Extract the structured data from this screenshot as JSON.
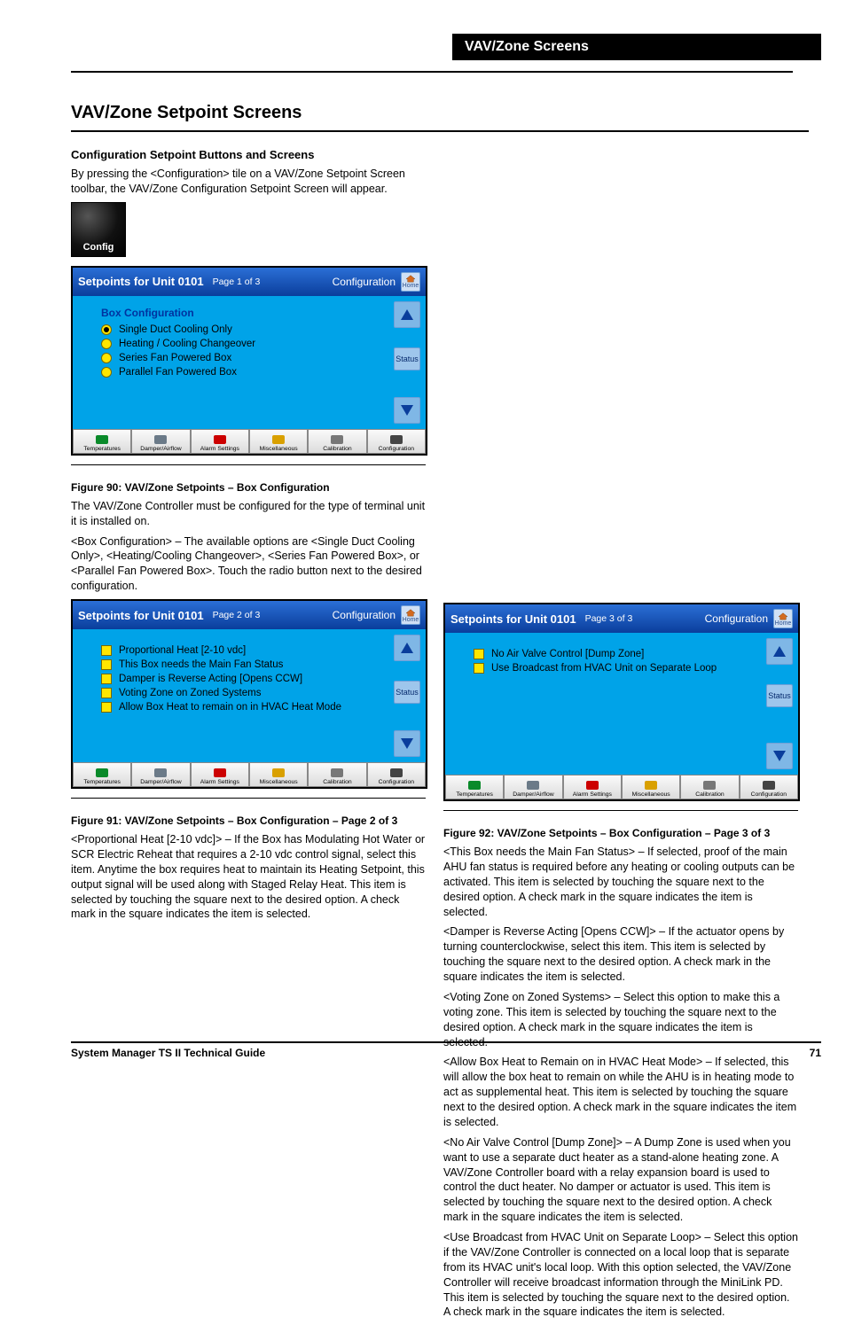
{
  "top_banner": "VAV/Zone Screens",
  "section_title": "VAV/Zone Setpoint Screens",
  "subhead_config": "Configuration Setpoint Buttons and Screens",
  "intro_text": "By pressing the <Configuration> tile on a VAV/Zone Setpoint Screen toolbar, the VAV/Zone Configuration Setpoint Screen will appear.",
  "config_btn_label": "Config",
  "panel1": {
    "header_title": "Setpoints for Unit 0101",
    "page_num": "Page 1 of 3",
    "header_right": "Configuration",
    "box_title": "Box Configuration",
    "options": [
      {
        "label": "Single Duct Cooling Only",
        "selected": true
      },
      {
        "label": "Heating / Cooling Changeover",
        "selected": false
      },
      {
        "label": "Series Fan Powered Box",
        "selected": false
      },
      {
        "label": "Parallel Fan Powered Box",
        "selected": false
      }
    ],
    "status_label": "Status"
  },
  "fig1_title": "Figure 90: VAV/Zone Setpoints – Box Configuration",
  "fig1_body1": "The VAV/Zone Controller must be configured for the type of terminal unit it is installed on.",
  "fig1_body2": "<Box Configuration> – The available options are <Single Duct Cooling Only>, <Heating/Cooling Changeover>, <Series Fan Powered Box>, or <Parallel Fan Powered Box>. Touch the radio button next to the desired configuration.",
  "panel2": {
    "header_title": "Setpoints for Unit 0101",
    "page_num": "Page 2 of 3",
    "header_right": "Configuration",
    "options": [
      "Proportional Heat [2-10 vdc]",
      "This Box needs the Main Fan Status",
      "Damper is Reverse Acting [Opens CCW]",
      "Voting Zone on Zoned Systems",
      "Allow Box Heat to remain on in HVAC Heat Mode"
    ],
    "status_label": "Status"
  },
  "fig2_title": "Figure 91: VAV/Zone Setpoints – Box Configuration – Page 2 of 3",
  "fig2_body": "<Proportional Heat [2-10 vdc]> – If the Box has Modulating Hot Water or SCR Electric Reheat that requires a 2-10 vdc control signal, select this item. Anytime the box requires heat to maintain its Heating Setpoint, this output signal will be used along with Staged Relay Heat. This item is selected by touching the square next to the desired option. A check mark in the square indicates the item is selected.",
  "panel3": {
    "header_title": "Setpoints for Unit 0101",
    "page_num": "Page 3 of 3",
    "header_right": "Configuration",
    "options": [
      "No Air Valve Control [Dump Zone]",
      "Use Broadcast from HVAC Unit on Separate Loop"
    ],
    "status_label": "Status"
  },
  "fig3_title": "Figure 92: VAV/Zone Setpoints – Box Configuration – Page 3 of 3",
  "fig3_body1": "<This Box needs the Main Fan Status> – If selected, proof of the main AHU fan status is required before any heating or cooling outputs can be activated. This item is selected by touching the square next to the desired option. A check mark in the square indicates the item is selected.",
  "fig3_body2": "<Damper is Reverse Acting [Opens CCW]> – If the actuator opens by turning counterclockwise, select this item. This item is selected by touching the square next to the desired option. A check mark in the square indicates the item is selected.",
  "fig3_body3": "<Voting Zone on Zoned Systems> – Select this option to make this a voting zone. This item is selected by touching the square next to the desired option. A check mark in the square indicates the item is selected.",
  "fig3_body4": "<Allow Box Heat to Remain on in HVAC Heat Mode> – If selected, this will allow the box heat to remain on while the AHU is in heating mode to act as supplemental heat. This item is selected by touching the square next to the desired option. A check mark in the square indicates the item is selected.",
  "fig3_body5": "<No Air Valve Control [Dump Zone]> – A Dump Zone is used when you want to use a separate duct heater as a stand-alone heating zone. A VAV/Zone Controller board with a relay expansion board is used to control the duct heater. No damper or actuator is used. This item is selected by touching the square next to the desired option. A check mark in the square indicates the item is selected.",
  "fig3_body6": "<Use Broadcast from HVAC Unit on Separate Loop> – Select this option if the VAV/Zone Controller is connected on a local loop that is separate from its HVAC unit's local loop. With this option selected, the VAV/Zone Controller will receive broadcast information through the MiniLink PD. This item is selected by touching the square next to the desired option. A check mark in the square indicates the item is selected.",
  "toolbar_items": [
    "Temperatures",
    "Damper/Airflow",
    "Alarm Settings",
    "Miscellaneous",
    "Calibration",
    "Configuration"
  ],
  "footer_left": "System Manager TS II Technical Guide",
  "footer_page": "71",
  "home_label": "Home"
}
